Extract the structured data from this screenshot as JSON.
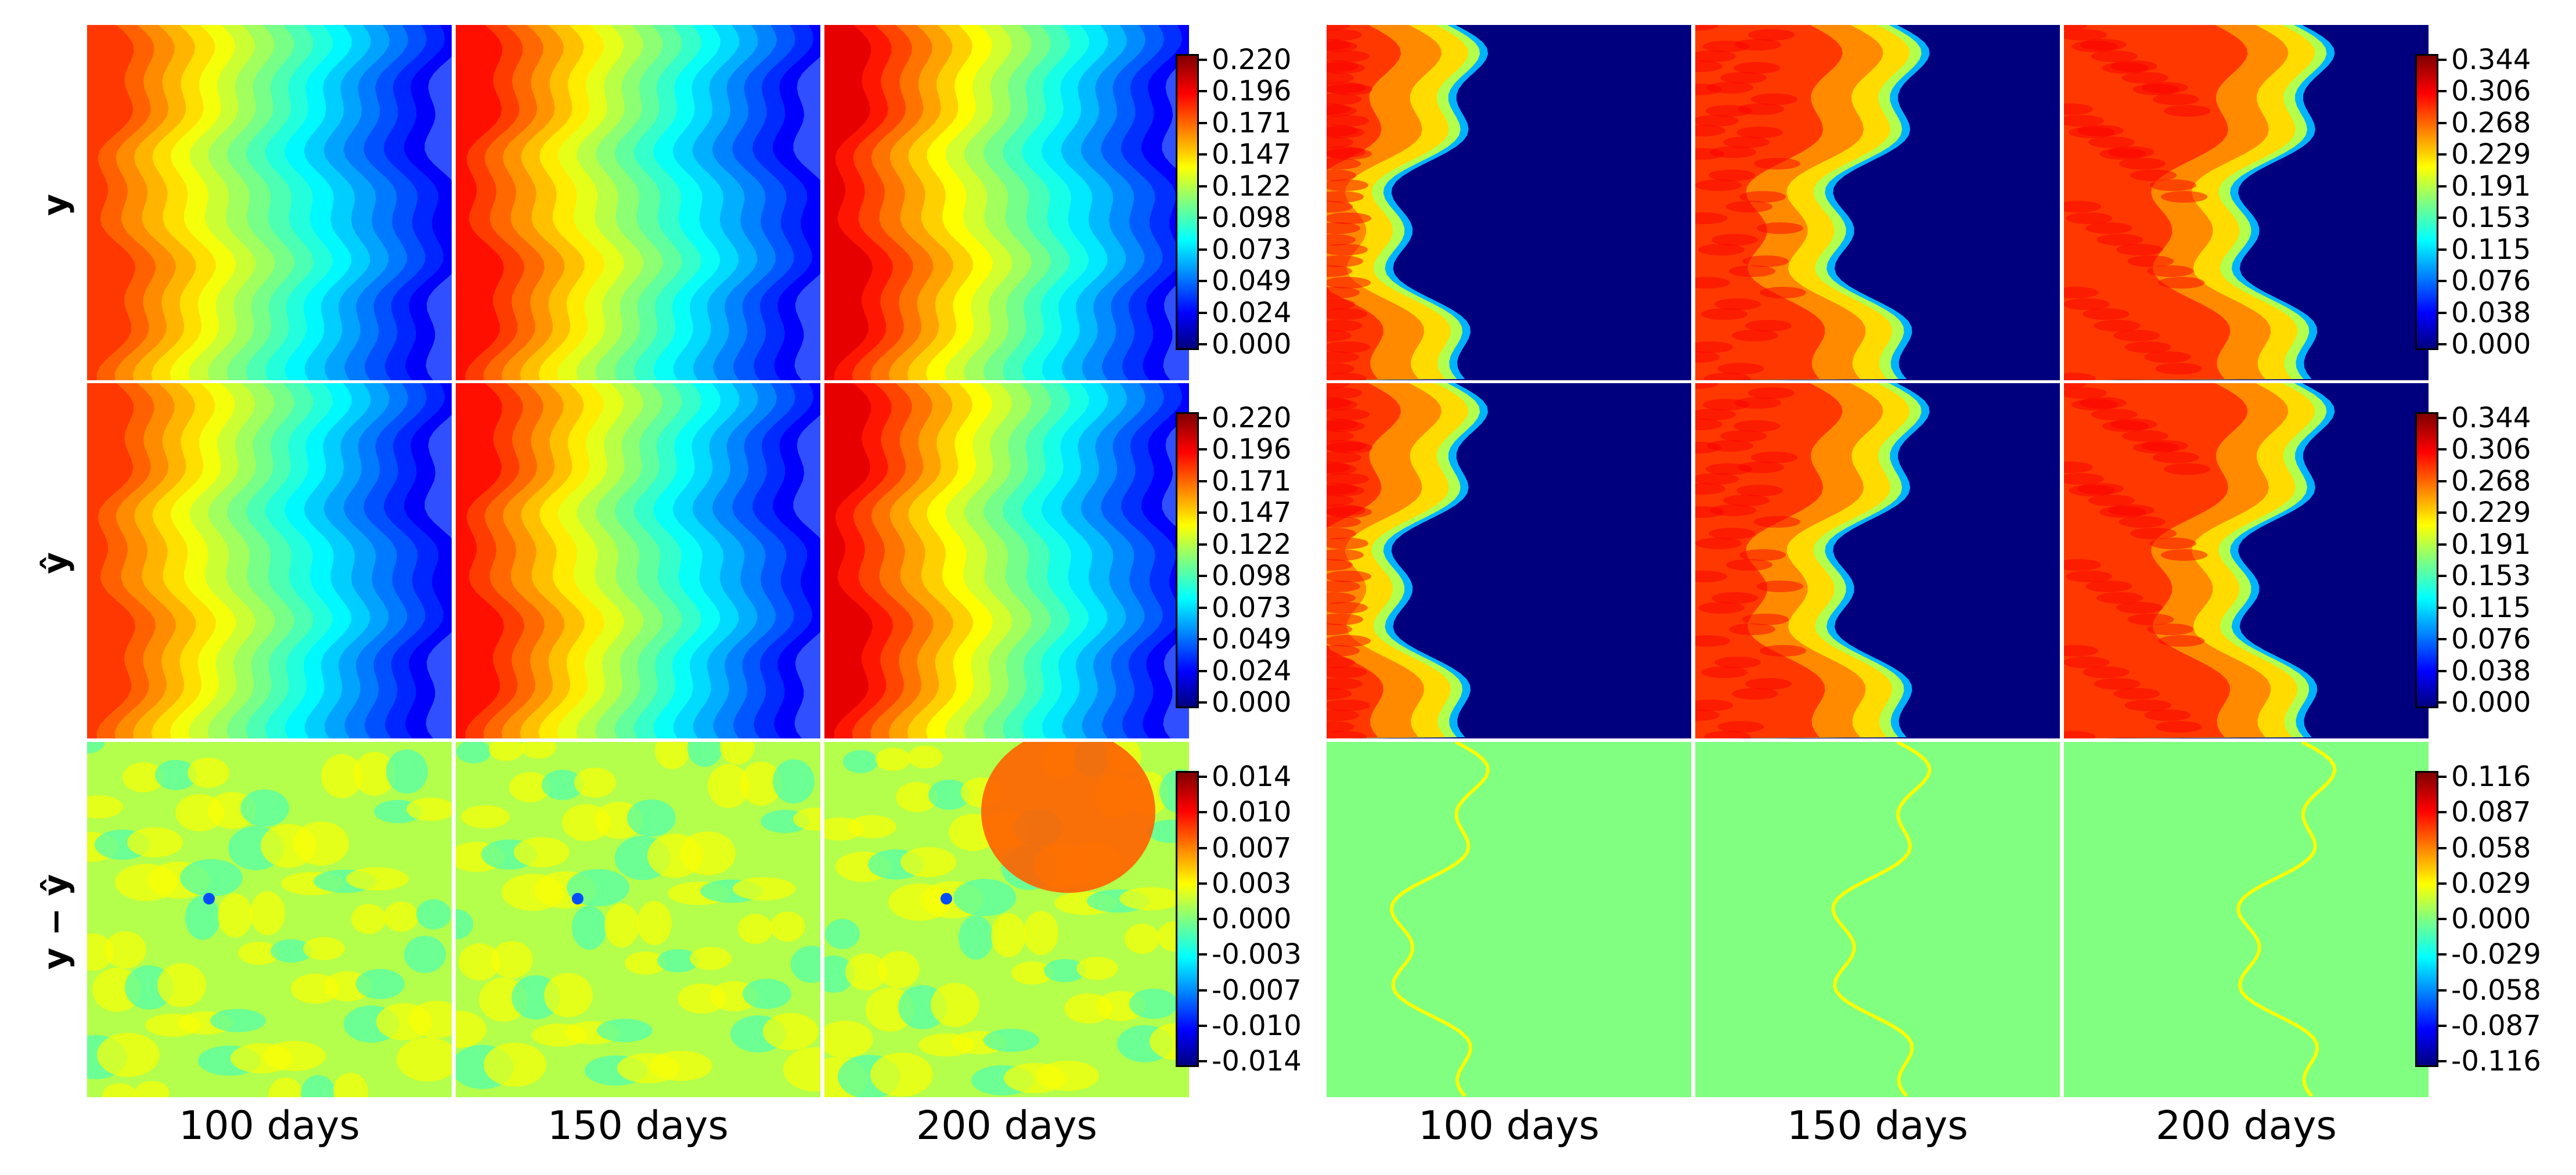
{
  "figure": {
    "row_labels": [
      {
        "text": "y",
        "hat": false
      },
      {
        "text": "y",
        "hat": true
      },
      {
        "text": "y − ŷ",
        "hat": false
      }
    ],
    "column_labels": [
      "100 days",
      "150 days",
      "200 days",
      "100 days",
      "150 days",
      "200 days"
    ]
  },
  "chart_data": [
    {
      "type": "heatmap",
      "group": "left",
      "row": "y",
      "columns": [
        "100 days",
        "150 days",
        "200 days"
      ],
      "colormap": "jet",
      "colorbar_ticks": [
        "0.220",
        "0.196",
        "0.171",
        "0.147",
        "0.122",
        "0.098",
        "0.073",
        "0.049",
        "0.024",
        "0.000"
      ],
      "range": [
        0.0,
        0.22
      ]
    },
    {
      "type": "heatmap",
      "group": "left",
      "row": "ŷ",
      "columns": [
        "100 days",
        "150 days",
        "200 days"
      ],
      "colormap": "jet",
      "colorbar_ticks": [
        "0.220",
        "0.196",
        "0.171",
        "0.147",
        "0.122",
        "0.098",
        "0.073",
        "0.049",
        "0.024",
        "0.000"
      ],
      "range": [
        0.0,
        0.22
      ]
    },
    {
      "type": "heatmap",
      "group": "left",
      "row": "y − ŷ",
      "columns": [
        "100 days",
        "150 days",
        "200 days"
      ],
      "colormap": "jet",
      "colorbar_ticks": [
        "0.014",
        "0.010",
        "0.007",
        "0.003",
        "0.000",
        "-0.003",
        "-0.007",
        "-0.010",
        "-0.014"
      ],
      "range": [
        -0.016,
        0.016
      ]
    },
    {
      "type": "heatmap",
      "group": "right",
      "row": "y",
      "columns": [
        "100 days",
        "150 days",
        "200 days"
      ],
      "colormap": "jet",
      "colorbar_ticks": [
        "0.344",
        "0.306",
        "0.268",
        "0.229",
        "0.191",
        "0.153",
        "0.115",
        "0.076",
        "0.038",
        "0.000"
      ],
      "range": [
        0.0,
        0.344
      ]
    },
    {
      "type": "heatmap",
      "group": "right",
      "row": "ŷ",
      "columns": [
        "100 days",
        "150 days",
        "200 days"
      ],
      "colormap": "jet",
      "colorbar_ticks": [
        "0.344",
        "0.306",
        "0.268",
        "0.229",
        "0.191",
        "0.153",
        "0.115",
        "0.076",
        "0.038",
        "0.000"
      ],
      "range": [
        0.0,
        0.344
      ]
    },
    {
      "type": "heatmap",
      "group": "right",
      "row": "y − ŷ",
      "columns": [
        "100 days",
        "150 days",
        "200 days"
      ],
      "colormap": "jet",
      "colorbar_ticks": [
        "0.116",
        "0.087",
        "0.058",
        "0.029",
        "0.000",
        "-0.029",
        "-0.058",
        "-0.087",
        "-0.116"
      ],
      "range": [
        -0.13,
        0.13
      ]
    }
  ]
}
